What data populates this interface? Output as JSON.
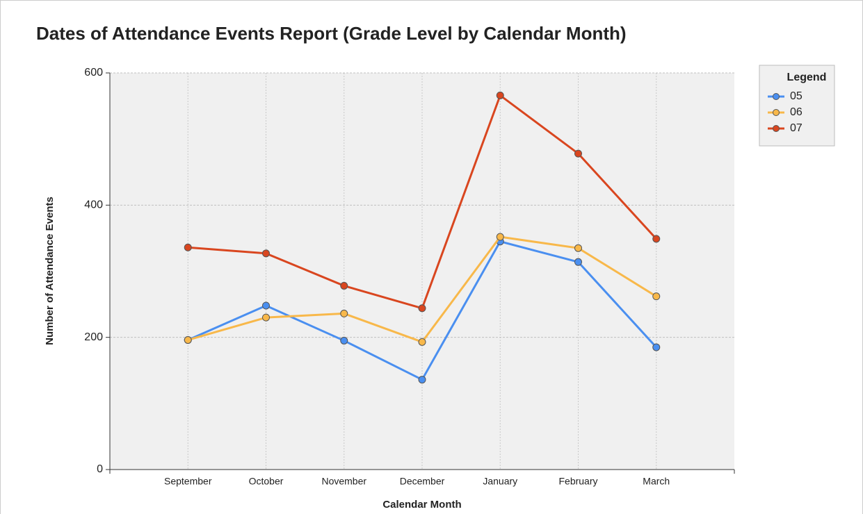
{
  "chart_data": {
    "type": "line",
    "title": "Dates of Attendance Events Report (Grade Level by Calendar Month)",
    "xlabel": "Calendar Month",
    "ylabel": "Number of Attendance Events",
    "legend_title": "Legend",
    "legend_position": "right",
    "categories": [
      "September",
      "October",
      "November",
      "December",
      "January",
      "February",
      "March"
    ],
    "series": [
      {
        "name": "05",
        "color": "#4a8ff0",
        "values": [
          196,
          248,
          195,
          136,
          345,
          314,
          185
        ]
      },
      {
        "name": "06",
        "color": "#f8b84a",
        "values": [
          196,
          230,
          236,
          193,
          352,
          335,
          262
        ]
      },
      {
        "name": "07",
        "color": "#d9461f",
        "values": [
          336,
          327,
          278,
          244,
          566,
          478,
          349
        ]
      }
    ],
    "ylim": [
      0,
      600
    ],
    "yticks": [
      0,
      200,
      400,
      600
    ],
    "grid": true
  }
}
